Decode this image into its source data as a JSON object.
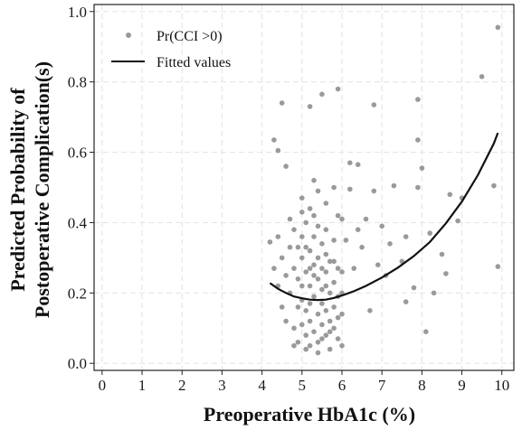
{
  "chart_data": {
    "type": "scatter",
    "xlabel": "Preoperative HbA1c (%)",
    "ylabel_lines": [
      "Predicted Probability of",
      "Postoperative Complication(s)"
    ],
    "xlim": [
      -0.2,
      10.3
    ],
    "ylim": [
      -0.02,
      1.02
    ],
    "x_ticks": [
      0,
      1,
      2,
      3,
      4,
      5,
      6,
      7,
      8,
      9,
      10
    ],
    "y_ticks": [
      0.0,
      0.2,
      0.4,
      0.6,
      0.8,
      1.0
    ],
    "y_tick_labels": [
      "0.0",
      "0.2",
      "0.4",
      "0.6",
      "0.8",
      "1.0"
    ],
    "grid": true,
    "legend_position": "top-left",
    "colors": {
      "points": "#9a9a9a",
      "line": "#111111",
      "grid": "#e6e6e6"
    },
    "series": [
      {
        "name": "Pr(CCI >0)",
        "kind": "scatter",
        "points": [
          [
            4.3,
            0.635
          ],
          [
            4.4,
            0.605
          ],
          [
            4.6,
            0.56
          ],
          [
            4.5,
            0.74
          ],
          [
            5.2,
            0.73
          ],
          [
            5.5,
            0.765
          ],
          [
            5.9,
            0.78
          ],
          [
            6.8,
            0.735
          ],
          [
            7.9,
            0.75
          ],
          [
            9.5,
            0.815
          ],
          [
            9.9,
            0.955
          ],
          [
            5.3,
            0.52
          ],
          [
            5.4,
            0.49
          ],
          [
            5.0,
            0.47
          ],
          [
            5.6,
            0.455
          ],
          [
            5.8,
            0.5
          ],
          [
            5.2,
            0.44
          ],
          [
            4.7,
            0.41
          ],
          [
            6.2,
            0.495
          ],
          [
            6.0,
            0.41
          ],
          [
            6.2,
            0.57
          ],
          [
            6.4,
            0.565
          ],
          [
            6.8,
            0.49
          ],
          [
            7.3,
            0.505
          ],
          [
            7.9,
            0.5
          ],
          [
            7.9,
            0.635
          ],
          [
            8.0,
            0.555
          ],
          [
            8.7,
            0.48
          ],
          [
            8.9,
            0.405
          ],
          [
            9.0,
            0.47
          ],
          [
            9.8,
            0.505
          ],
          [
            9.9,
            0.275
          ],
          [
            8.6,
            0.255
          ],
          [
            8.2,
            0.37
          ],
          [
            8.5,
            0.31
          ],
          [
            7.6,
            0.36
          ],
          [
            7.2,
            0.34
          ],
          [
            6.9,
            0.28
          ],
          [
            7.0,
            0.39
          ],
          [
            6.5,
            0.33
          ],
          [
            6.3,
            0.27
          ],
          [
            6.6,
            0.41
          ],
          [
            7.8,
            0.215
          ],
          [
            8.3,
            0.2
          ],
          [
            7.5,
            0.29
          ],
          [
            6.1,
            0.35
          ],
          [
            6.7,
            0.15
          ],
          [
            7.1,
            0.25
          ],
          [
            8.1,
            0.09
          ],
          [
            7.6,
            0.175
          ],
          [
            6.4,
            0.38
          ],
          [
            4.4,
            0.36
          ],
          [
            4.2,
            0.345
          ],
          [
            4.3,
            0.27
          ],
          [
            4.4,
            0.22
          ],
          [
            4.5,
            0.16
          ],
          [
            4.6,
            0.12
          ],
          [
            4.5,
            0.3
          ],
          [
            4.6,
            0.25
          ],
          [
            4.7,
            0.33
          ],
          [
            4.8,
            0.38
          ],
          [
            4.8,
            0.27
          ],
          [
            4.7,
            0.2
          ],
          [
            4.8,
            0.1
          ],
          [
            4.9,
            0.24
          ],
          [
            4.9,
            0.06
          ],
          [
            5.0,
            0.3
          ],
          [
            5.0,
            0.18
          ],
          [
            5.0,
            0.11
          ],
          [
            5.0,
            0.36
          ],
          [
            5.1,
            0.26
          ],
          [
            5.1,
            0.15
          ],
          [
            5.1,
            0.08
          ],
          [
            5.2,
            0.22
          ],
          [
            5.2,
            0.32
          ],
          [
            5.2,
            0.12
          ],
          [
            5.2,
            0.05
          ],
          [
            5.3,
            0.28
          ],
          [
            5.3,
            0.19
          ],
          [
            5.3,
            0.09
          ],
          [
            5.3,
            0.36
          ],
          [
            5.4,
            0.24
          ],
          [
            5.4,
            0.14
          ],
          [
            5.4,
            0.06
          ],
          [
            5.4,
            0.3
          ],
          [
            5.5,
            0.21
          ],
          [
            5.5,
            0.11
          ],
          [
            5.5,
            0.17
          ],
          [
            5.5,
            0.34
          ],
          [
            5.6,
            0.26
          ],
          [
            5.6,
            0.08
          ],
          [
            5.6,
            0.15
          ],
          [
            5.7,
            0.2
          ],
          [
            5.7,
            0.12
          ],
          [
            5.7,
            0.29
          ],
          [
            5.7,
            0.04
          ],
          [
            5.8,
            0.23
          ],
          [
            5.8,
            0.1
          ],
          [
            5.8,
            0.16
          ],
          [
            5.9,
            0.27
          ],
          [
            5.9,
            0.07
          ],
          [
            5.9,
            0.13
          ],
          [
            6.0,
            0.2
          ],
          [
            6.0,
            0.05
          ],
          [
            5.1,
            0.4
          ],
          [
            5.3,
            0.42
          ],
          [
            5.6,
            0.38
          ],
          [
            5.8,
            0.35
          ],
          [
            5.9,
            0.42
          ],
          [
            5.0,
            0.43
          ],
          [
            5.4,
            0.39
          ],
          [
            4.9,
            0.33
          ],
          [
            5.1,
            0.33
          ],
          [
            5.6,
            0.31
          ],
          [
            5.8,
            0.29
          ],
          [
            5.3,
            0.25
          ],
          [
            5.0,
            0.22
          ],
          [
            4.9,
            0.16
          ],
          [
            5.2,
            0.17
          ],
          [
            5.6,
            0.22
          ],
          [
            5.9,
            0.19
          ],
          [
            6.0,
            0.26
          ],
          [
            6.0,
            0.14
          ],
          [
            5.5,
            0.07
          ],
          [
            5.1,
            0.04
          ],
          [
            5.4,
            0.03
          ],
          [
            5.7,
            0.09
          ],
          [
            4.8,
            0.05
          ],
          [
            5.2,
            0.27
          ],
          [
            5.5,
            0.27
          ]
        ]
      },
      {
        "name": "Fitted values",
        "kind": "line",
        "points": [
          [
            4.2,
            0.228
          ],
          [
            4.4,
            0.212
          ],
          [
            4.6,
            0.2
          ],
          [
            4.8,
            0.19
          ],
          [
            5.0,
            0.185
          ],
          [
            5.2,
            0.181
          ],
          [
            5.4,
            0.18
          ],
          [
            5.6,
            0.181
          ],
          [
            5.8,
            0.186
          ],
          [
            6.0,
            0.193
          ],
          [
            6.3,
            0.205
          ],
          [
            6.6,
            0.22
          ],
          [
            7.0,
            0.244
          ],
          [
            7.4,
            0.272
          ],
          [
            7.8,
            0.305
          ],
          [
            8.2,
            0.345
          ],
          [
            8.6,
            0.398
          ],
          [
            9.0,
            0.46
          ],
          [
            9.4,
            0.535
          ],
          [
            9.8,
            0.625
          ],
          [
            9.9,
            0.655
          ]
        ]
      }
    ]
  }
}
